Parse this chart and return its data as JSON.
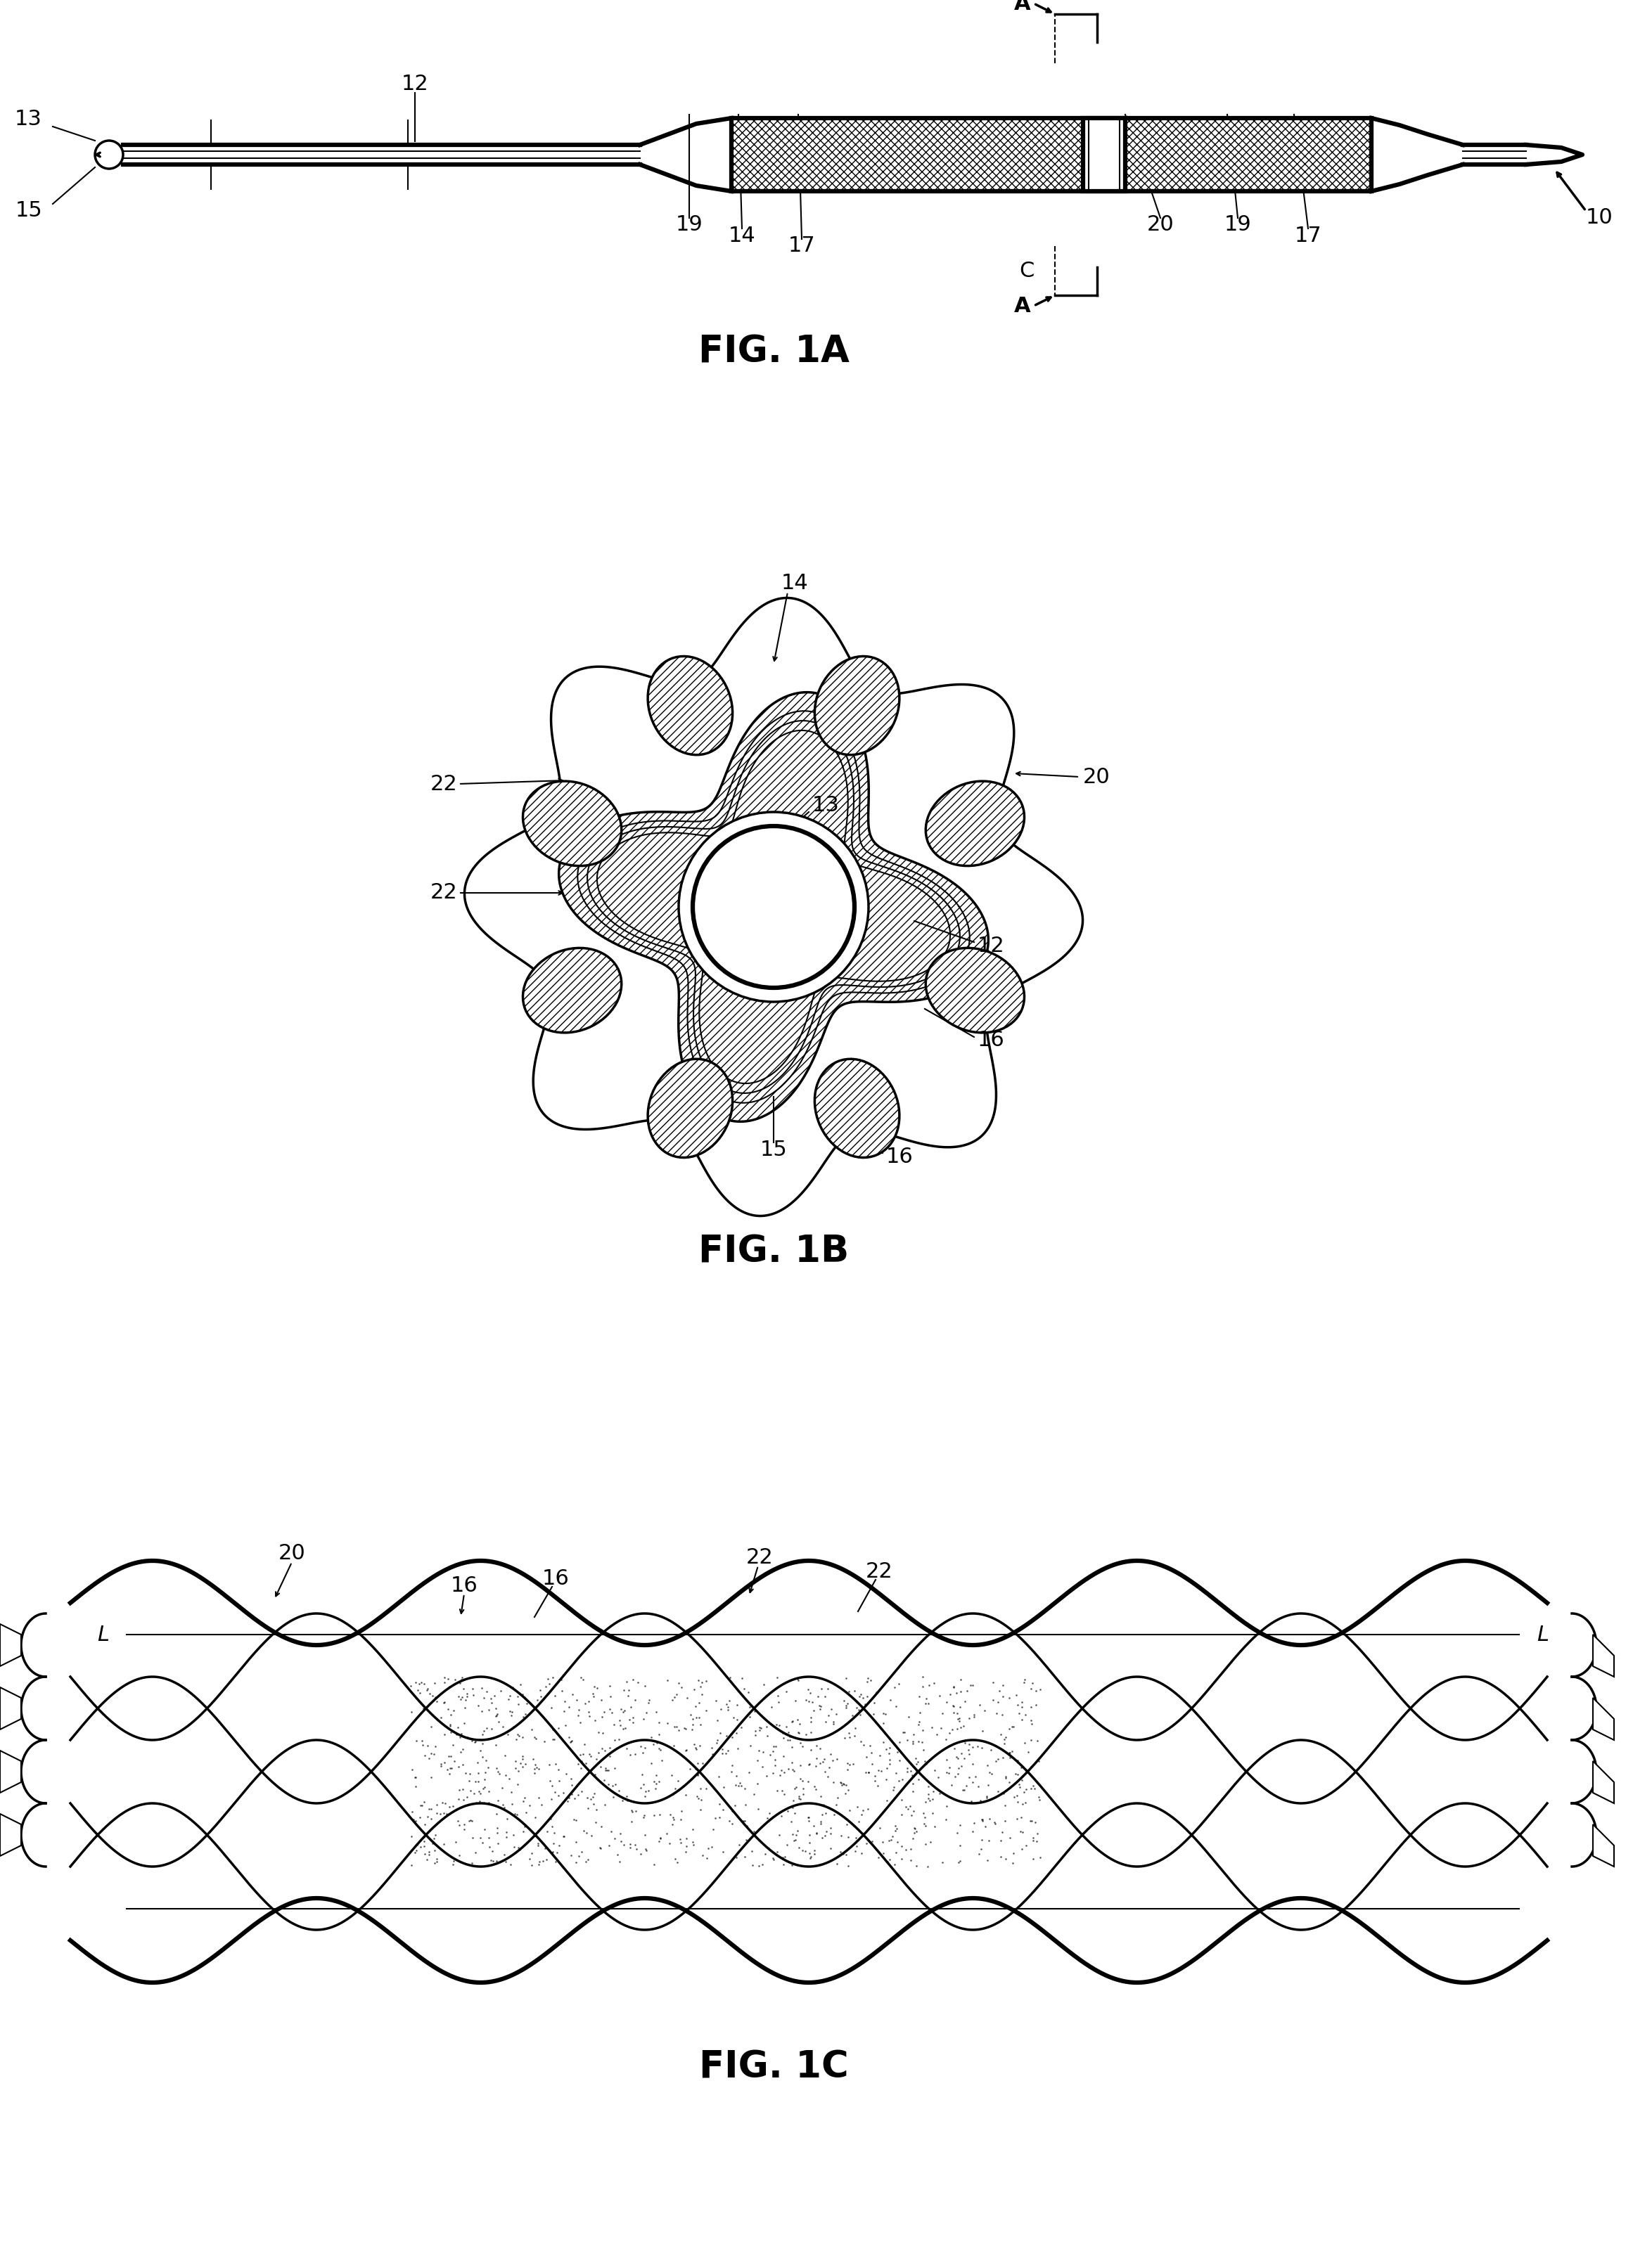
{
  "bg_color": "#ffffff",
  "fig_width": 23.22,
  "fig_height": 32.26,
  "fig1a_label": "FIG. 1A",
  "fig1b_label": "FIG. 1B",
  "fig1c_label": "FIG. 1C",
  "font_size_label": 22,
  "font_size_fig": 38,
  "lw_main": 2.5,
  "lw_thick": 4.5,
  "lw_thin": 1.5
}
